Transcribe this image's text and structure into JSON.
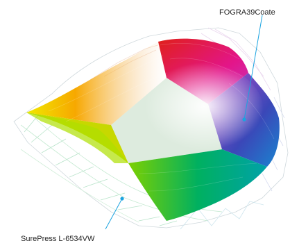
{
  "labels": {
    "fogra": "FOGRA39Coate",
    "surepress": "SurePress L-6534VW"
  },
  "colors": {
    "leader_line": "#1aa3e0",
    "marker": "#1aa3e0"
  }
}
